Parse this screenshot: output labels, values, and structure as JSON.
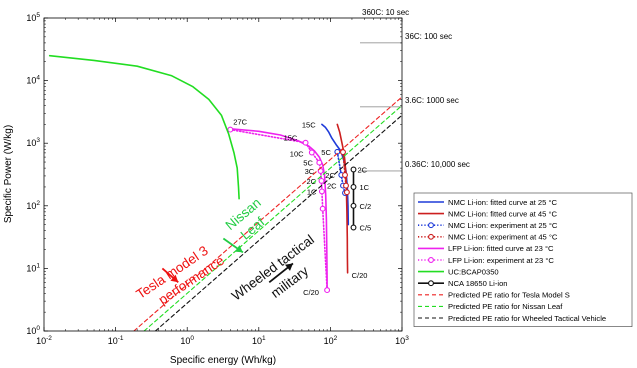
{
  "chart_data": {
    "type": "line",
    "title": "",
    "xlabel": "Specific energy (Wh/kg)",
    "ylabel": "Specific Power (W/kg)",
    "xscale": "log",
    "yscale": "log",
    "xlim": [
      0.01,
      1000
    ],
    "ylim": [
      1,
      100000
    ],
    "x_ticks": [
      {
        "v": 0.01,
        "base": "10",
        "exp": "-2"
      },
      {
        "v": 0.1,
        "base": "10",
        "exp": "-1"
      },
      {
        "v": 1,
        "base": "10",
        "exp": "0"
      },
      {
        "v": 10,
        "base": "10",
        "exp": "1"
      },
      {
        "v": 100,
        "base": "10",
        "exp": "2"
      },
      {
        "v": 1000,
        "base": "10",
        "exp": "3"
      }
    ],
    "y_ticks": [
      {
        "v": 1,
        "base": "10",
        "exp": "0"
      },
      {
        "v": 10,
        "base": "10",
        "exp": "1"
      },
      {
        "v": 100,
        "base": "10",
        "exp": "2"
      },
      {
        "v": 1000,
        "base": "10",
        "exp": "3"
      },
      {
        "v": 10000,
        "base": "10",
        "exp": "4"
      },
      {
        "v": 100000,
        "base": "10",
        "exp": "5"
      }
    ],
    "grid": false,
    "legend_position": "right",
    "series": [
      {
        "name": "NMC Li-ion: fitted curve at 25 °C",
        "color": "#1f3bd9",
        "dash": "solid",
        "marker": "none",
        "points": [
          [
            76,
            2000
          ],
          [
            85,
            1800
          ],
          [
            95,
            1500
          ],
          [
            105,
            1200
          ],
          [
            120,
            950
          ],
          [
            140,
            750
          ],
          [
            155,
            520
          ],
          [
            165,
            360
          ],
          [
            172,
            200
          ],
          [
            176,
            100
          ],
          [
            178,
            50
          ]
        ]
      },
      {
        "name": "NMC Li-ion: fitted curve at 45 °C",
        "color": "#cc1f1f",
        "dash": "solid",
        "marker": "none",
        "points": [
          [
            125,
            2000
          ],
          [
            135,
            1500
          ],
          [
            145,
            1000
          ],
          [
            155,
            700
          ],
          [
            160,
            500
          ],
          [
            165,
            300
          ],
          [
            168,
            150
          ],
          [
            170,
            80
          ],
          [
            172,
            30
          ],
          [
            173,
            15
          ],
          [
            174,
            8.5
          ]
        ]
      },
      {
        "name": "NMC Li-ion: experiment at 25 °C",
        "color": "#1f3bd9",
        "dash": "dot",
        "marker": "circle",
        "points": [
          [
            125,
            730
          ],
          [
            142,
            310
          ],
          [
            150,
            210
          ],
          [
            160,
            160
          ]
        ]
      },
      {
        "name": "NMC Li-ion: experiment at 45 °C",
        "color": "#cc1f1f",
        "dash": "dot",
        "marker": "circle",
        "points": [
          [
            150,
            720
          ],
          [
            160,
            310
          ],
          [
            165,
            210
          ],
          [
            170,
            165
          ]
        ]
      },
      {
        "name": "LFP Li-ion: fitted curve at 23 °C",
        "color": "#ee22ee",
        "dash": "solid",
        "marker": "none",
        "points": [
          [
            4,
            1700
          ],
          [
            10,
            1550
          ],
          [
            20,
            1350
          ],
          [
            35,
            1100
          ],
          [
            50,
            900
          ],
          [
            60,
            750
          ],
          [
            70,
            600
          ],
          [
            78,
            450
          ],
          [
            83,
            300
          ],
          [
            86,
            150
          ],
          [
            88,
            60
          ],
          [
            89,
            20
          ],
          [
            90,
            7
          ],
          [
            90,
            4.5
          ]
        ]
      },
      {
        "name": "LFP Li-ion: experiment at 23 °C",
        "color": "#ee22ee",
        "dash": "dot",
        "marker": "circle",
        "points": [
          [
            4,
            1650
          ],
          [
            45,
            1020
          ],
          [
            55,
            710
          ],
          [
            70,
            490
          ],
          [
            73,
            360
          ],
          [
            75,
            250
          ],
          [
            76,
            170
          ],
          [
            78,
            90
          ],
          [
            90,
            4.5
          ]
        ]
      },
      {
        "name": "UC:BCAP0350",
        "color": "#22dd22",
        "dash": "solid",
        "marker": "none",
        "points": [
          [
            0.012,
            25000
          ],
          [
            0.05,
            21000
          ],
          [
            0.2,
            17000
          ],
          [
            0.6,
            12000
          ],
          [
            1.2,
            8000
          ],
          [
            2,
            5000
          ],
          [
            3,
            2800
          ],
          [
            3.8,
            1400
          ],
          [
            4.5,
            700
          ],
          [
            5,
            400
          ],
          [
            5.2,
            200
          ],
          [
            5.3,
            130
          ]
        ]
      },
      {
        "name": "NCA 18650 Li-ion",
        "color": "#111111",
        "dash": "solid",
        "marker": "circle",
        "points": [
          [
            210,
            380
          ],
          [
            210,
            200
          ],
          [
            210,
            100
          ],
          [
            210,
            45
          ]
        ]
      },
      {
        "name": "Predicted PE ratio for Tesla Model S",
        "color": "#ee2222",
        "dash": "dash",
        "marker": "none",
        "points": [
          [
            0.18,
            1
          ],
          [
            1000,
            5500
          ]
        ]
      },
      {
        "name": "Predicted PE ratio for Nissan Leaf",
        "color": "#22dd22",
        "dash": "dash",
        "marker": "none",
        "points": [
          [
            0.25,
            1
          ],
          [
            1000,
            4000
          ]
        ]
      },
      {
        "name": "Predicted PE ratio for Wheeled Tactical Vehicle",
        "color": "#111111",
        "dash": "dash",
        "marker": "none",
        "points": [
          [
            0.36,
            1
          ],
          [
            1000,
            2800
          ]
        ]
      }
    ],
    "point_labels": [
      {
        "text": "27C",
        "x": 4,
        "y": 1650,
        "dx": 3,
        "dy": -5
      },
      {
        "text": "15C",
        "x": 45,
        "y": 1020,
        "dx": -22,
        "dy": -2
      },
      {
        "text": "10C",
        "x": 55,
        "y": 710,
        "dx": -22,
        "dy": 4
      },
      {
        "text": "5C",
        "x": 70,
        "y": 490,
        "dx": -16,
        "dy": 3
      },
      {
        "text": "3C",
        "x": 73,
        "y": 360,
        "dx": -16,
        "dy": 3
      },
      {
        "text": "2C",
        "x": 75,
        "y": 250,
        "dx": -15,
        "dy": 3
      },
      {
        "text": "1C",
        "x": 76,
        "y": 170,
        "dx": -15,
        "dy": 3
      },
      {
        "text": "C/20",
        "x": 90,
        "y": 4.5,
        "dx": -24,
        "dy": 5
      },
      {
        "text": "15C",
        "x": 76,
        "y": 2000,
        "dx": -20,
        "dy": 3
      },
      {
        "text": "5C",
        "x": 125,
        "y": 730,
        "dx": -16,
        "dy": 3
      },
      {
        "text": "2C",
        "x": 142,
        "y": 310,
        "dx": -16,
        "dy": 3
      },
      {
        "text": "2C",
        "x": 150,
        "y": 210,
        "dx": -16,
        "dy": 3
      },
      {
        "text": "C/20",
        "x": 174,
        "y": 8.5,
        "dx": 4,
        "dy": 5
      },
      {
        "text": "2C",
        "x": 210,
        "y": 380,
        "dx": 4,
        "dy": 3
      },
      {
        "text": "1C",
        "x": 210,
        "y": 200,
        "dx": 6,
        "dy": 3
      },
      {
        "text": "C/2",
        "x": 210,
        "y": 100,
        "dx": 6,
        "dy": 3
      },
      {
        "text": "C/5",
        "x": 210,
        "y": 45,
        "dx": 6,
        "dy": 3
      }
    ],
    "rate_lines": [
      {
        "text": "360C: 10 sec",
        "y": 100000
      },
      {
        "text": "36C: 100 sec",
        "y": 40000
      },
      {
        "text": "3.6C: 1000 sec",
        "y": 3800
      },
      {
        "text": "0.36C: 10,000 sec",
        "y": 360
      }
    ],
    "annotations": [
      {
        "text": "Tesla model 3",
        "color": "#ee1111",
        "x": 0.22,
        "y": 3.2,
        "angle": -34
      },
      {
        "text": "performance",
        "color": "#ee1111",
        "x": 0.45,
        "y": 2.6,
        "angle": -34
      },
      {
        "text": "Nissan",
        "color": "#22cc44",
        "x": 4.0,
        "y": 40,
        "angle": -40
      },
      {
        "text": "Leaf",
        "color": "#22cc44",
        "x": 6.5,
        "y": 28,
        "angle": -40
      },
      {
        "text": "Wheeled tactical",
        "color": "#111111",
        "x": 4.8,
        "y": 3.0,
        "angle": -37
      },
      {
        "text": "military",
        "color": "#111111",
        "x": 17,
        "y": 3.3,
        "angle": -37
      }
    ],
    "arrows": [
      {
        "color": "#ee1111",
        "from": [
          0.45,
          10
        ],
        "to": [
          0.75,
          6
        ]
      },
      {
        "color": "#22cc44",
        "from": [
          3.2,
          30
        ],
        "to": [
          6,
          18
        ]
      },
      {
        "color": "#111111",
        "from": [
          14,
          6
        ],
        "to": [
          30,
          12
        ]
      }
    ]
  }
}
